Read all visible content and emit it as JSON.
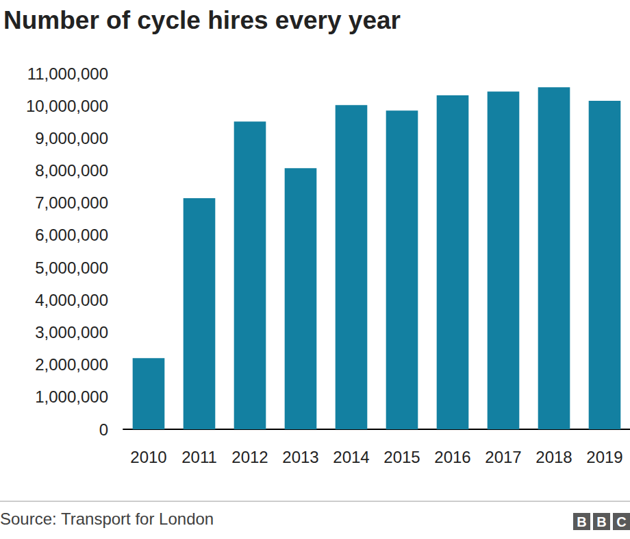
{
  "chart_data": {
    "type": "bar",
    "title": "Number of cycle hires every year",
    "categories": [
      "2010",
      "2011",
      "2012",
      "2013",
      "2014",
      "2015",
      "2016",
      "2017",
      "2018",
      "2019"
    ],
    "values": [
      2200000,
      7140000,
      9510000,
      8070000,
      10020000,
      9850000,
      10320000,
      10440000,
      10570000,
      10150000
    ],
    "color": "#1380a1",
    "ylim": [
      0,
      11000000
    ],
    "yticks": [
      0,
      {
        "value": 1000000,
        "label": "1,000,000"
      },
      {
        "value": 2000000,
        "label": "2,000,000"
      },
      {
        "value": 3000000,
        "label": "3,000,000"
      },
      {
        "value": 4000000,
        "label": "4,000,000"
      },
      {
        "value": 5000000,
        "label": "5,000,000"
      },
      {
        "value": 6000000,
        "label": "6,000,000"
      },
      {
        "value": 7000000,
        "label": "7,000,000"
      },
      {
        "value": 8000000,
        "label": "8,000,000"
      },
      {
        "value": 9000000,
        "label": "9,000,000"
      },
      {
        "value": 10000000,
        "label": "10,000,000"
      },
      {
        "value": 11000000,
        "label": "11,000,000"
      }
    ],
    "grid": false,
    "source": "Source: Transport for London",
    "logo": "BBC"
  }
}
